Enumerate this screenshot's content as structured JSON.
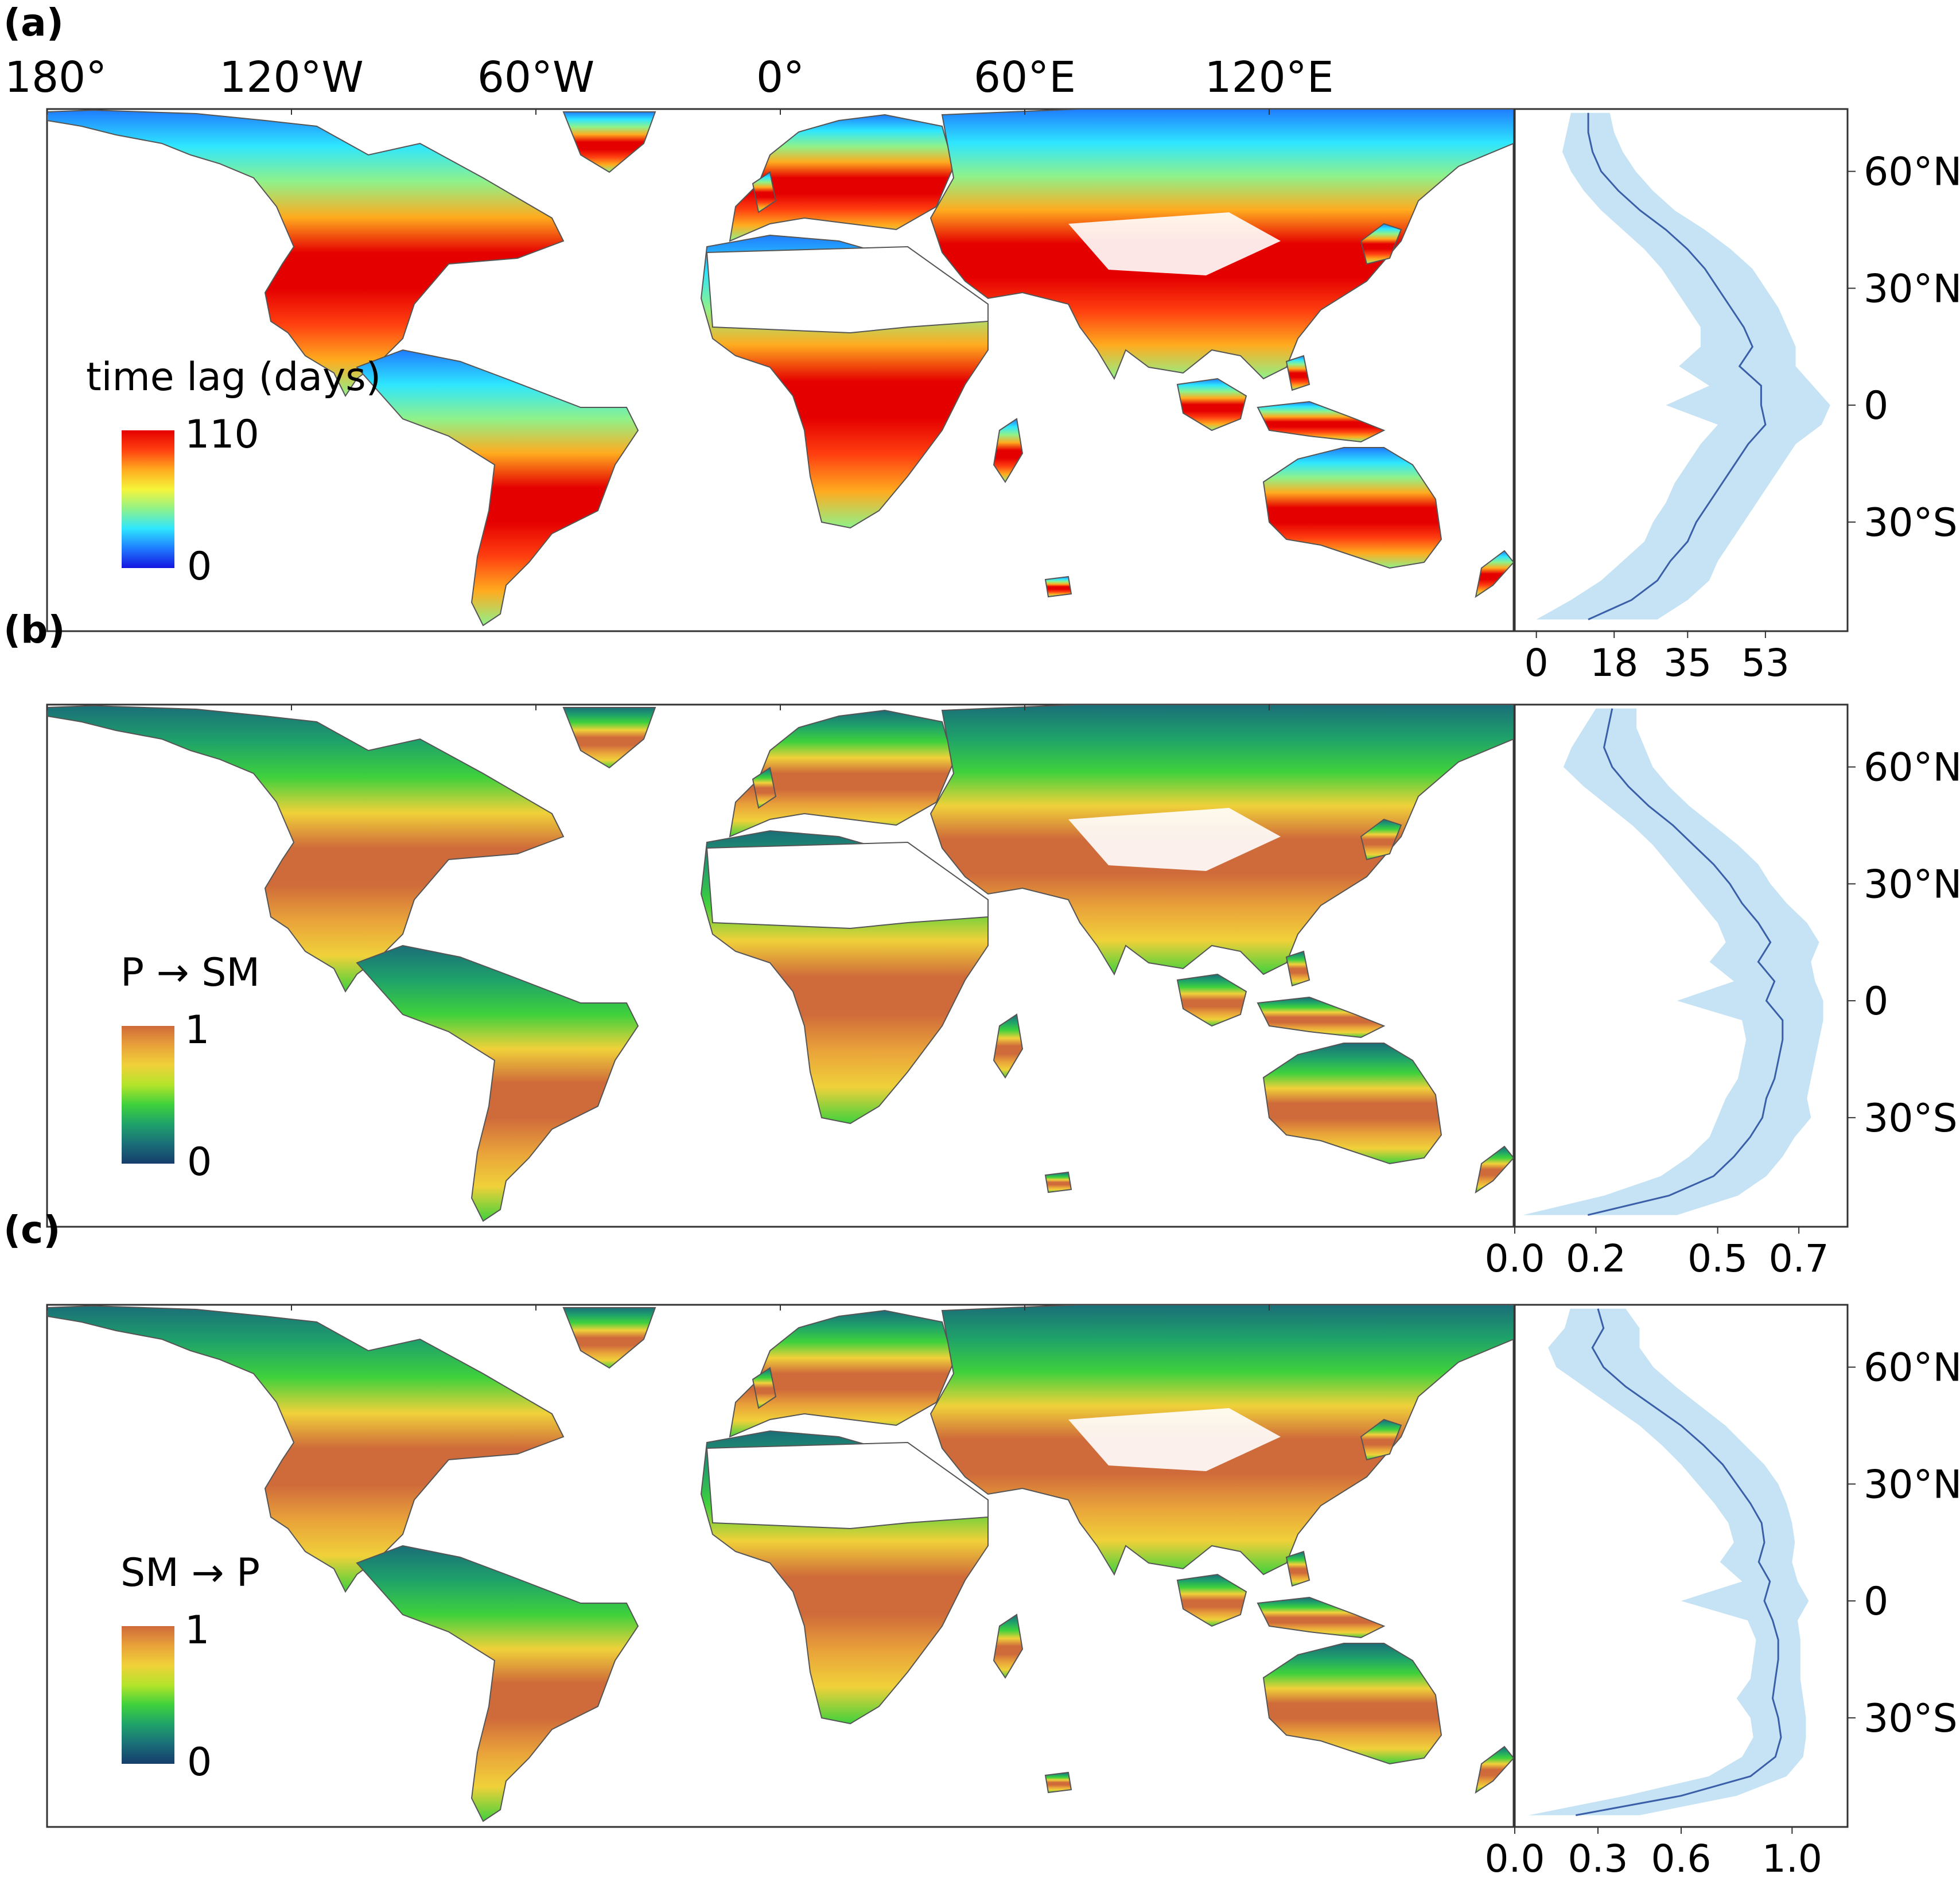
{
  "figure": {
    "lon_ticks": [
      "180°",
      "120°W",
      "60°W",
      "0°",
      "60°E",
      "120°E"
    ],
    "lat_ticks": [
      "60°N",
      "30°N",
      "0",
      "30°S"
    ],
    "colors": {
      "ocean": "#ffffff",
      "coast": "#555555",
      "profile_line": "#3a5fa8",
      "profile_band": "#bfe0f3"
    }
  },
  "panels": [
    {
      "id": "a",
      "label": "(a)",
      "legend_title": "time lag (days)",
      "colorbar_max": "110",
      "colorbar_min": "0",
      "colormap": [
        "#1414e0",
        "#1f7cff",
        "#2ee6ff",
        "#8ff28a",
        "#f5f53a",
        "#ffab1f",
        "#ff4010",
        "#e50000"
      ],
      "profile_xticks": [
        "0",
        "18",
        "35",
        "53"
      ],
      "profile_xrange": [
        -5,
        72
      ],
      "profile": [
        {
          "lat": 75,
          "mean": 12,
          "lo": 8,
          "hi": 17
        },
        {
          "lat": 70,
          "mean": 12,
          "lo": 7,
          "hi": 18
        },
        {
          "lat": 65,
          "mean": 13,
          "lo": 6,
          "hi": 20
        },
        {
          "lat": 60,
          "mean": 15,
          "lo": 8,
          "hi": 23
        },
        {
          "lat": 55,
          "mean": 19,
          "lo": 11,
          "hi": 27
        },
        {
          "lat": 50,
          "mean": 24,
          "lo": 15,
          "hi": 32
        },
        {
          "lat": 45,
          "mean": 30,
          "lo": 20,
          "hi": 39
        },
        {
          "lat": 40,
          "mean": 35,
          "lo": 25,
          "hi": 45
        },
        {
          "lat": 35,
          "mean": 39,
          "lo": 29,
          "hi": 50
        },
        {
          "lat": 30,
          "mean": 42,
          "lo": 32,
          "hi": 53
        },
        {
          "lat": 25,
          "mean": 45,
          "lo": 35,
          "hi": 56
        },
        {
          "lat": 20,
          "mean": 48,
          "lo": 38,
          "hi": 58
        },
        {
          "lat": 15,
          "mean": 50,
          "lo": 38,
          "hi": 60
        },
        {
          "lat": 10,
          "mean": 47,
          "lo": 33,
          "hi": 60
        },
        {
          "lat": 5,
          "mean": 52,
          "lo": 40,
          "hi": 64
        },
        {
          "lat": 0,
          "mean": 52,
          "lo": 30,
          "hi": 68
        },
        {
          "lat": -5,
          "mean": 53,
          "lo": 42,
          "hi": 66
        },
        {
          "lat": -10,
          "mean": 49,
          "lo": 38,
          "hi": 60
        },
        {
          "lat": -15,
          "mean": 46,
          "lo": 35,
          "hi": 57
        },
        {
          "lat": -20,
          "mean": 43,
          "lo": 32,
          "hi": 54
        },
        {
          "lat": -25,
          "mean": 40,
          "lo": 30,
          "hi": 51
        },
        {
          "lat": -30,
          "mean": 37,
          "lo": 27,
          "hi": 48
        },
        {
          "lat": -35,
          "mean": 35,
          "lo": 25,
          "hi": 45
        },
        {
          "lat": -40,
          "mean": 31,
          "lo": 20,
          "hi": 42
        },
        {
          "lat": -45,
          "mean": 28,
          "lo": 15,
          "hi": 40
        },
        {
          "lat": -50,
          "mean": 22,
          "lo": 8,
          "hi": 35
        },
        {
          "lat": -55,
          "mean": 12,
          "lo": 0,
          "hi": 28
        }
      ]
    },
    {
      "id": "b",
      "label": "(b)",
      "legend_title": "P → SM",
      "colorbar_max": "1",
      "colorbar_min": "0",
      "colormap": [
        "#153d6b",
        "#1a6e78",
        "#1fa26a",
        "#3fd13c",
        "#b3e42a",
        "#f0d13a",
        "#e9a23a",
        "#cf6a3a"
      ],
      "profile_xticks": [
        "0.0",
        "0.2",
        "0.5",
        "0.7"
      ],
      "profile_xrange": [
        0,
        0.82
      ],
      "profile": [
        {
          "lat": 75,
          "mean": 0.24,
          "lo": 0.2,
          "hi": 0.3
        },
        {
          "lat": 70,
          "mean": 0.23,
          "lo": 0.17,
          "hi": 0.3
        },
        {
          "lat": 65,
          "mean": 0.22,
          "lo": 0.14,
          "hi": 0.32
        },
        {
          "lat": 60,
          "mean": 0.24,
          "lo": 0.12,
          "hi": 0.34
        },
        {
          "lat": 55,
          "mean": 0.28,
          "lo": 0.17,
          "hi": 0.38
        },
        {
          "lat": 50,
          "mean": 0.33,
          "lo": 0.23,
          "hi": 0.43
        },
        {
          "lat": 45,
          "mean": 0.39,
          "lo": 0.29,
          "hi": 0.49
        },
        {
          "lat": 40,
          "mean": 0.44,
          "lo": 0.34,
          "hi": 0.55
        },
        {
          "lat": 35,
          "mean": 0.49,
          "lo": 0.38,
          "hi": 0.6
        },
        {
          "lat": 30,
          "mean": 0.53,
          "lo": 0.42,
          "hi": 0.63
        },
        {
          "lat": 25,
          "mean": 0.56,
          "lo": 0.46,
          "hi": 0.67
        },
        {
          "lat": 20,
          "mean": 0.6,
          "lo": 0.5,
          "hi": 0.72
        },
        {
          "lat": 15,
          "mean": 0.63,
          "lo": 0.52,
          "hi": 0.75
        },
        {
          "lat": 10,
          "mean": 0.6,
          "lo": 0.48,
          "hi": 0.73
        },
        {
          "lat": 5,
          "mean": 0.64,
          "lo": 0.54,
          "hi": 0.74
        },
        {
          "lat": 0,
          "mean": 0.62,
          "lo": 0.4,
          "hi": 0.76
        },
        {
          "lat": -5,
          "mean": 0.66,
          "lo": 0.56,
          "hi": 0.76
        },
        {
          "lat": -10,
          "mean": 0.66,
          "lo": 0.57,
          "hi": 0.75
        },
        {
          "lat": -15,
          "mean": 0.65,
          "lo": 0.56,
          "hi": 0.74
        },
        {
          "lat": -20,
          "mean": 0.64,
          "lo": 0.55,
          "hi": 0.73
        },
        {
          "lat": -25,
          "mean": 0.62,
          "lo": 0.52,
          "hi": 0.72
        },
        {
          "lat": -30,
          "mean": 0.61,
          "lo": 0.5,
          "hi": 0.73
        },
        {
          "lat": -35,
          "mean": 0.58,
          "lo": 0.48,
          "hi": 0.69
        },
        {
          "lat": -40,
          "mean": 0.54,
          "lo": 0.43,
          "hi": 0.66
        },
        {
          "lat": -45,
          "mean": 0.49,
          "lo": 0.36,
          "hi": 0.62
        },
        {
          "lat": -50,
          "mean": 0.38,
          "lo": 0.22,
          "hi": 0.55
        },
        {
          "lat": -55,
          "mean": 0.18,
          "lo": 0.02,
          "hi": 0.4
        }
      ]
    },
    {
      "id": "c",
      "label": "(c)",
      "legend_title": "SM → P",
      "colorbar_max": "1",
      "colorbar_min": "0",
      "colormap": [
        "#153d6b",
        "#1a6e78",
        "#1fa26a",
        "#3fd13c",
        "#b3e42a",
        "#f0d13a",
        "#e9a23a",
        "#cf6a3a"
      ],
      "profile_xticks": [
        "0.0",
        "0.3",
        "0.6",
        "1.0"
      ],
      "profile_xrange": [
        0,
        1.2
      ],
      "profile": [
        {
          "lat": 75,
          "mean": 0.3,
          "lo": 0.2,
          "hi": 0.4
        },
        {
          "lat": 70,
          "mean": 0.32,
          "lo": 0.18,
          "hi": 0.45
        },
        {
          "lat": 65,
          "mean": 0.28,
          "lo": 0.12,
          "hi": 0.45
        },
        {
          "lat": 60,
          "mean": 0.32,
          "lo": 0.15,
          "hi": 0.5
        },
        {
          "lat": 55,
          "mean": 0.4,
          "lo": 0.25,
          "hi": 0.58
        },
        {
          "lat": 50,
          "mean": 0.5,
          "lo": 0.35,
          "hi": 0.67
        },
        {
          "lat": 45,
          "mean": 0.6,
          "lo": 0.45,
          "hi": 0.76
        },
        {
          "lat": 40,
          "mean": 0.68,
          "lo": 0.53,
          "hi": 0.83
        },
        {
          "lat": 35,
          "mean": 0.75,
          "lo": 0.6,
          "hi": 0.9
        },
        {
          "lat": 30,
          "mean": 0.8,
          "lo": 0.66,
          "hi": 0.95
        },
        {
          "lat": 25,
          "mean": 0.85,
          "lo": 0.72,
          "hi": 0.98
        },
        {
          "lat": 20,
          "mean": 0.89,
          "lo": 0.77,
          "hi": 1.0
        },
        {
          "lat": 15,
          "mean": 0.9,
          "lo": 0.79,
          "hi": 1.01
        },
        {
          "lat": 10,
          "mean": 0.88,
          "lo": 0.74,
          "hi": 1.0
        },
        {
          "lat": 5,
          "mean": 0.92,
          "lo": 0.82,
          "hi": 1.02
        },
        {
          "lat": 0,
          "mean": 0.9,
          "lo": 0.6,
          "hi": 1.06
        },
        {
          "lat": -5,
          "mean": 0.93,
          "lo": 0.84,
          "hi": 1.02
        },
        {
          "lat": -10,
          "mean": 0.95,
          "lo": 0.87,
          "hi": 1.03
        },
        {
          "lat": -15,
          "mean": 0.95,
          "lo": 0.86,
          "hi": 1.03
        },
        {
          "lat": -20,
          "mean": 0.94,
          "lo": 0.85,
          "hi": 1.03
        },
        {
          "lat": -25,
          "mean": 0.93,
          "lo": 0.8,
          "hi": 1.04
        },
        {
          "lat": -30,
          "mean": 0.95,
          "lo": 0.85,
          "hi": 1.05
        },
        {
          "lat": -35,
          "mean": 0.96,
          "lo": 0.86,
          "hi": 1.05
        },
        {
          "lat": -40,
          "mean": 0.94,
          "lo": 0.82,
          "hi": 1.04
        },
        {
          "lat": -45,
          "mean": 0.85,
          "lo": 0.7,
          "hi": 0.98
        },
        {
          "lat": -50,
          "mean": 0.6,
          "lo": 0.4,
          "hi": 0.8
        },
        {
          "lat": -55,
          "mean": 0.22,
          "lo": 0.05,
          "hi": 0.45
        }
      ]
    }
  ]
}
